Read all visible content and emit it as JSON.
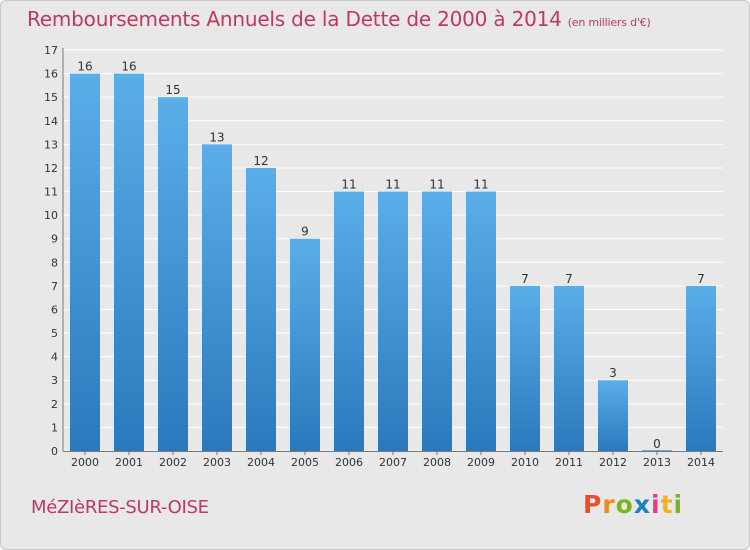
{
  "chart_data": {
    "type": "bar",
    "title": "Remboursements Annuels de la Dette de 2000 à 2014",
    "subtitle": "(en milliers d'€)",
    "categories": [
      "2000",
      "2001",
      "2002",
      "2003",
      "2004",
      "2005",
      "2006",
      "2007",
      "2008",
      "2009",
      "2010",
      "2011",
      "2012",
      "2013",
      "2014"
    ],
    "values": [
      16,
      16,
      15,
      13,
      12,
      9,
      11,
      11,
      11,
      11,
      7,
      7,
      3,
      0,
      7
    ],
    "ylim": [
      0,
      17
    ],
    "yticks": [
      0,
      1,
      2,
      3,
      4,
      5,
      6,
      7,
      8,
      9,
      10,
      11,
      12,
      13,
      14,
      15,
      16,
      17
    ],
    "xlabel": "",
    "ylabel": "",
    "grid": true
  },
  "footer": {
    "city": "MéZIèRES-SUR-OISE",
    "logo_letters": [
      "P",
      "r",
      "o",
      "x",
      "i",
      "t",
      "i"
    ]
  },
  "colors": {
    "title": "#c0395d",
    "bar_top": "#5aaee8",
    "bar_bottom": "#2a79bd",
    "grid": "#ffffff",
    "background": "#e8e8e8",
    "logo": [
      "#e8502a",
      "#f08a1c",
      "#7ab51d",
      "#1d7ec2",
      "#e83a8a",
      "#f3b21b",
      "#7ab51d"
    ]
  }
}
